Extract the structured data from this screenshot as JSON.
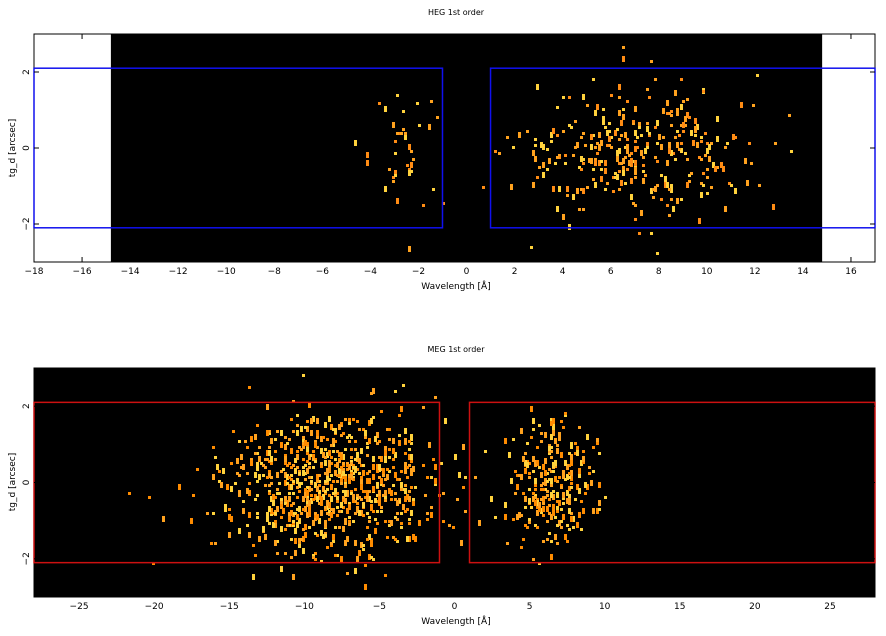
{
  "chart_data": [
    {
      "type": "heatmap",
      "title": "HEG 1st order",
      "xlabel": "Wavelength [Å]",
      "ylabel": "tg_d [arcsec]",
      "xlim": [
        -18,
        17
      ],
      "ylim": [
        -3,
        3
      ],
      "x_ticks": [
        -18,
        -16,
        -14,
        -12,
        -10,
        -8,
        -6,
        -4,
        -2,
        0,
        2,
        4,
        6,
        8,
        10,
        12,
        14,
        16
      ],
      "y_ticks": [
        -2,
        0,
        2
      ],
      "data_extent_x": [
        -14.8,
        14.8
      ],
      "background_color": "#000000",
      "point_colors": [
        "#ffa21e",
        "#ffd23c",
        "#ff8c14"
      ],
      "regions": [
        {
          "x": [
            -18,
            -1.0
          ],
          "y": [
            -2.1,
            2.1
          ],
          "color": "#1010ee"
        },
        {
          "x": [
            1.0,
            17
          ],
          "y": [
            -2.1,
            2.1
          ],
          "color": "#1010ee"
        }
      ],
      "clusters": [
        {
          "x_center": -2.5,
          "x_spread": 0.8,
          "y_center": 0.0,
          "y_spread": 0.9,
          "count": 40
        },
        {
          "x_center": 6.8,
          "x_spread": 2.4,
          "y_center": 0.0,
          "y_spread": 0.9,
          "count": 330
        }
      ]
    },
    {
      "type": "heatmap",
      "title": "MEG 1st order",
      "xlabel": "Wavelength [Å]",
      "ylabel": "tg_d [arcsec]",
      "xlim": [
        -28,
        28
      ],
      "ylim": [
        -3,
        3
      ],
      "x_ticks": [
        -25,
        -20,
        -15,
        -10,
        -5,
        0,
        5,
        10,
        15,
        20,
        25
      ],
      "y_ticks": [
        -2,
        0,
        2
      ],
      "data_extent_x": [
        -28,
        28
      ],
      "background_color": "#000000",
      "point_colors": [
        "#ff8c00",
        "#ffa21e",
        "#ffd23c"
      ],
      "regions": [
        {
          "x": [
            -28,
            -1.0
          ],
          "y": [
            -2.1,
            2.1
          ],
          "color": "#cc1111"
        },
        {
          "x": [
            1.0,
            28
          ],
          "y": [
            -2.1,
            2.1
          ],
          "color": "#cc1111"
        }
      ],
      "clusters": [
        {
          "x_center": -8.5,
          "x_spread": 3.6,
          "y_center": 0.0,
          "y_spread": 0.9,
          "count": 820
        },
        {
          "x_center": 6.2,
          "x_spread": 1.5,
          "y_center": 0.0,
          "y_spread": 0.8,
          "count": 260
        }
      ]
    }
  ]
}
